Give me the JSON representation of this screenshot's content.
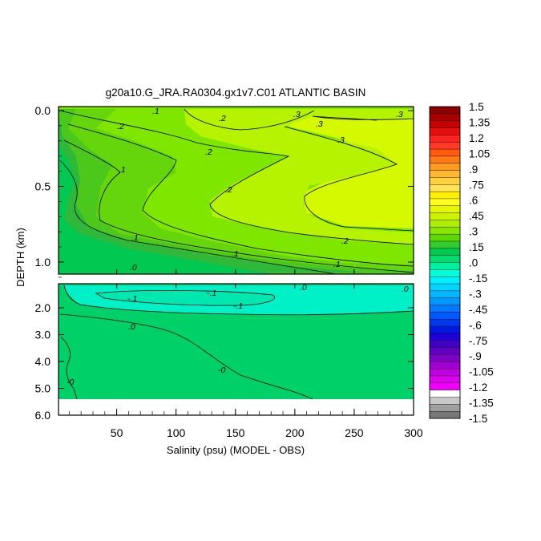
{
  "chart_data": {
    "type": "heatmap",
    "title": "g20a10.G_JRA.RA0304.gx1v7.C01 ATLANTIC BASIN",
    "xlabel": "Salinity (psu) (MODEL - OBS)",
    "ylabel": "DEPTH (km)",
    "xlim": [
      1,
      300
    ],
    "x_ticks": [
      "50",
      "100",
      "150",
      "200",
      "250",
      "300"
    ],
    "panels": [
      {
        "name": "upper",
        "ylim": [
          0.0,
          1.1
        ],
        "y_ticks": [
          "0.0",
          "0.5",
          "1.0"
        ],
        "contour_labels": [
          ".3",
          ".3",
          ".3",
          ".3",
          ".2",
          ".2",
          ".2",
          ".2",
          ".2",
          ".1",
          ".1",
          ".1",
          ".1",
          ".1",
          ".0"
        ]
      },
      {
        "name": "lower",
        "ylim": [
          1.1,
          6.0
        ],
        "y_ticks": [
          "2.0",
          "3.0",
          "4.0",
          "5.0",
          "6.0"
        ],
        "contour_labels": [
          "-.1",
          "-.1",
          "-.1",
          ".0",
          ".0",
          ".0",
          "-0",
          "-0"
        ]
      }
    ],
    "colorbar": {
      "levels": [
        "1.5",
        "1.35",
        "1.2",
        "1.05",
        ".9",
        ".75",
        ".6",
        ".45",
        ".3",
        ".15",
        ".0",
        "-.15",
        "-.3",
        "-.45",
        "-.6",
        "-.75",
        "-.9",
        "-1.05",
        "-1.2",
        "-1.35",
        "-1.5"
      ],
      "colors": [
        "#8b0000",
        "#a80000",
        "#c80000",
        "#e41010",
        "#ff2020",
        "#ff3a28",
        "#ff5a10",
        "#ff7a10",
        "#ff9a20",
        "#ffb830",
        "#ffd040",
        "#ffe458",
        "#fff000",
        "#ffff20",
        "#e6f700",
        "#ccf200",
        "#b0ee00",
        "#8ae800",
        "#5ed800",
        "#30cc30",
        "#00c850",
        "#00dc70",
        "#00f0a0",
        "#00ffd8",
        "#00f0ff",
        "#00d4ff",
        "#00b8ff",
        "#0098ff",
        "#0078ff",
        "#0058ff",
        "#0038f0",
        "#0018e0",
        "#2000d8",
        "#4000c8",
        "#6000c0",
        "#8000c8",
        "#a000d0",
        "#c000e0",
        "#e000f0",
        "#f000f8",
        "#ffffff",
        "#c8c8c8",
        "#a0a0a0",
        "#787878"
      ]
    }
  }
}
